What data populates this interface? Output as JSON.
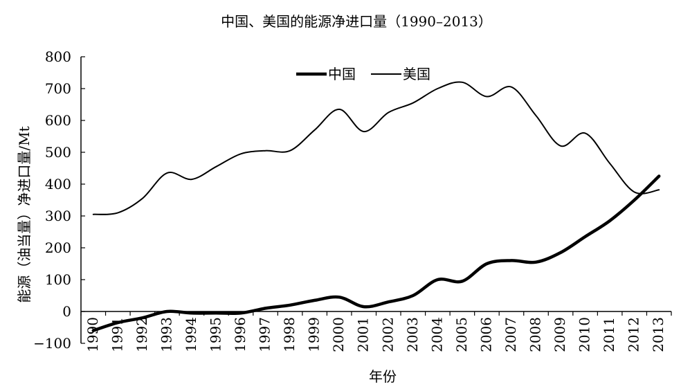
{
  "chart_data": {
    "type": "line",
    "title": "中国、美国的能源净进口量（1990–2013）",
    "xlabel": "年份",
    "ylabel": "能源（油当量）净进口量/Mt",
    "x": [
      "1990",
      "1991",
      "1992",
      "1993",
      "1994",
      "1995",
      "1996",
      "1997",
      "1998",
      "1999",
      "2000",
      "2001",
      "2002",
      "2003",
      "2004",
      "2005",
      "2006",
      "2007",
      "2008",
      "2009",
      "2010",
      "2011",
      "2012",
      "2013"
    ],
    "ylim": [
      -100,
      800
    ],
    "yticks": [
      -100,
      0,
      100,
      200,
      300,
      400,
      500,
      600,
      700,
      800
    ],
    "legend_position": "top-center",
    "grid": false,
    "series": [
      {
        "name": "中国",
        "color": "#000000",
        "line_weight": "thick",
        "values": [
          -60,
          -35,
          -20,
          0,
          -5,
          -5,
          -5,
          10,
          20,
          35,
          45,
          15,
          30,
          50,
          100,
          95,
          150,
          160,
          155,
          185,
          235,
          285,
          350,
          425
        ]
      },
      {
        "name": "美国",
        "color": "#000000",
        "line_weight": "thin",
        "values": [
          305,
          310,
          355,
          435,
          415,
          455,
          495,
          505,
          505,
          570,
          635,
          565,
          625,
          655,
          700,
          720,
          675,
          705,
          615,
          520,
          560,
          465,
          375,
          382
        ]
      }
    ]
  }
}
